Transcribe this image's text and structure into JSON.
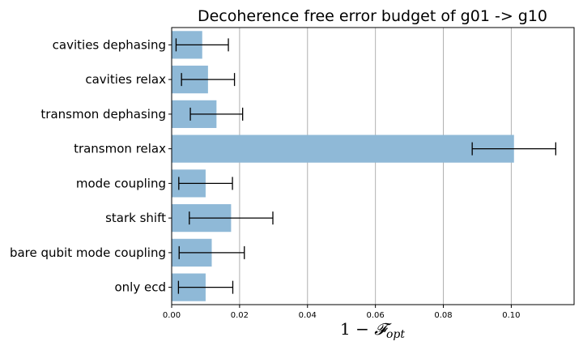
{
  "chart_data": {
    "type": "bar",
    "orientation": "horizontal",
    "title": "Decoherence free error budget of g01 -> g10",
    "xlabel": "1 − ",
    "xlabel_math": "𝓕",
    "xlabel_sub": "opt",
    "ylabel": "",
    "categories": [
      "cavities dephasing",
      "cavities relax",
      "transmon dephasing",
      "transmon relax",
      "mode coupling",
      "stark shift",
      "bare qubit mode coupling",
      "only ecd"
    ],
    "values": [
      0.009,
      0.0107,
      0.0132,
      0.1008,
      0.01,
      0.0175,
      0.0118,
      0.01
    ],
    "errors": [
      0.0077,
      0.0078,
      0.0077,
      0.0123,
      0.0079,
      0.0123,
      0.0096,
      0.008
    ],
    "xlim": [
      0,
      0.1185
    ],
    "xticks": [
      0.0,
      0.02,
      0.04,
      0.06,
      0.08,
      0.1
    ],
    "xtick_labels": [
      "0.00",
      "0.02",
      "0.04",
      "0.06",
      "0.08",
      "0.10"
    ],
    "grid": "x",
    "bar_color": "#8fb9d7",
    "error_color": "#000000"
  }
}
